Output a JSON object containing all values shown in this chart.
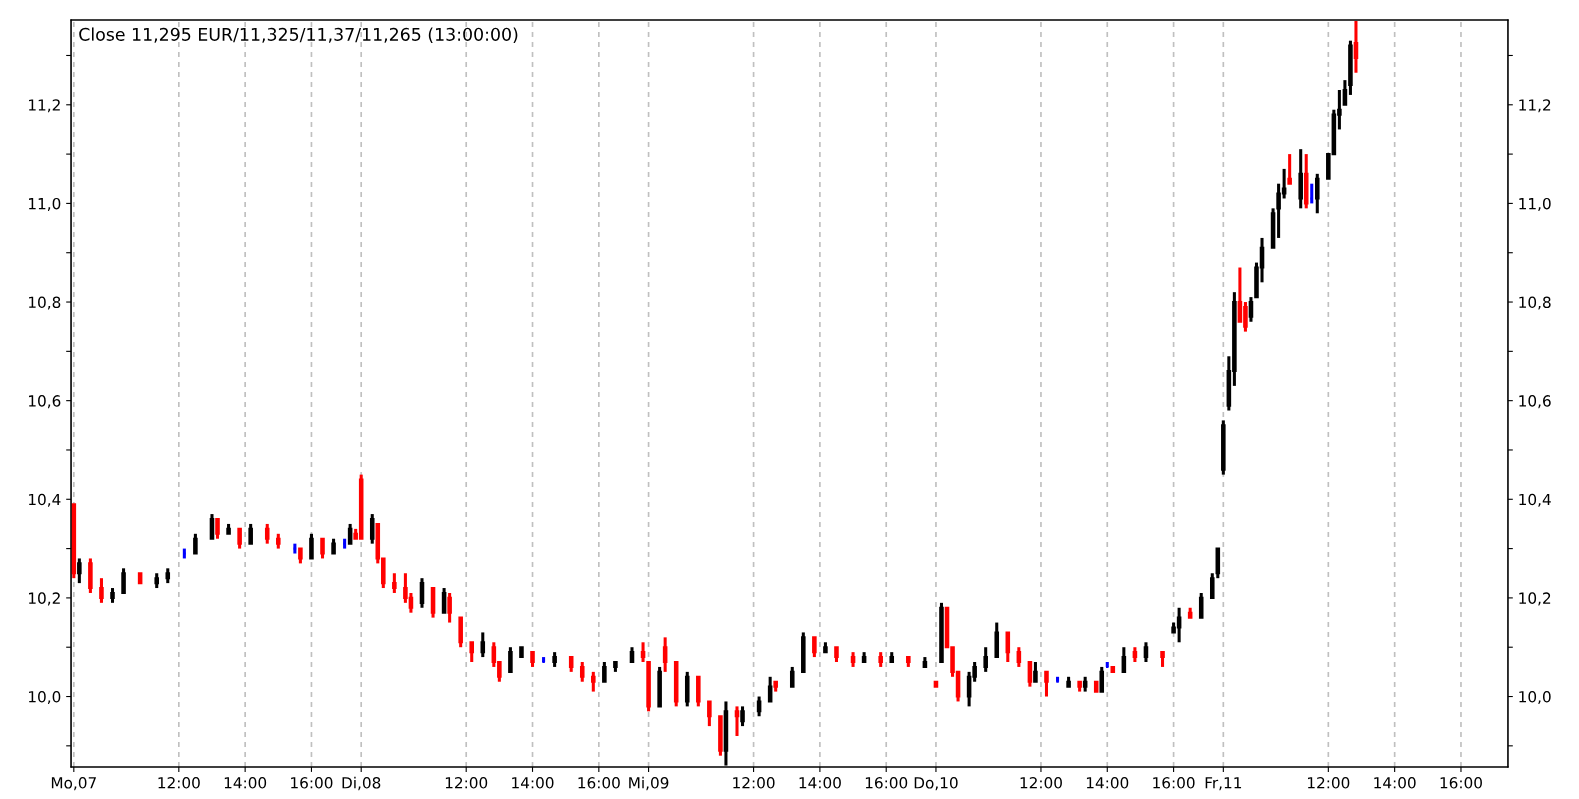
{
  "chart_data": {
    "type": "candlestick",
    "annotations": [
      "Close 11,295 EUR/11,325/11,37/11,265 (13:00:00)"
    ],
    "categories": [
      "Mo,07",
      null,
      null,
      null,
      null,
      null,
      null,
      null,
      null,
      null,
      null,
      null,
      null,
      null,
      null,
      null,
      null,
      null,
      null,
      "12:00",
      null,
      null,
      null,
      null,
      null,
      null,
      null,
      null,
      null,
      null,
      null,
      "14:00",
      null,
      null,
      null,
      null,
      null,
      null,
      null,
      null,
      null,
      null,
      null,
      "16:00",
      null,
      null,
      null,
      null,
      null,
      null,
      null,
      null,
      "Di,08",
      null,
      null,
      null,
      null,
      null,
      null,
      null,
      null,
      null,
      null,
      null,
      null,
      null,
      null,
      null,
      null,
      null,
      null,
      "12:00",
      null,
      null,
      null,
      null,
      null,
      null,
      null,
      null,
      null,
      null,
      null,
      "14:00",
      null,
      null,
      null,
      null,
      null,
      null,
      null,
      null,
      null,
      null,
      null,
      "16:00",
      null,
      null,
      null,
      null,
      null,
      null,
      null,
      null,
      "Mi,09",
      null,
      null,
      null,
      null,
      null,
      null,
      null,
      null,
      null,
      null,
      null,
      null,
      null,
      null,
      null,
      null,
      null,
      null,
      "12:00",
      null,
      null,
      null,
      null,
      null,
      null,
      null,
      null,
      null,
      null,
      null,
      "14:00",
      null,
      null,
      null,
      null,
      null,
      null,
      null,
      null,
      null,
      null,
      null,
      "16:00",
      null,
      null,
      null,
      null,
      null,
      null,
      null,
      null,
      "Do,10",
      null,
      null,
      null,
      null,
      null,
      null,
      null,
      null,
      null,
      null,
      null,
      null,
      null,
      null,
      null,
      null,
      null,
      null,
      "12:00",
      null,
      null,
      null,
      null,
      null,
      null,
      null,
      null,
      null,
      null,
      null,
      "14:00",
      null,
      null,
      null,
      null,
      null,
      null,
      null,
      null,
      null,
      null,
      null,
      "16:00",
      null,
      null,
      null,
      null,
      null,
      null,
      null,
      null,
      "Fr,11",
      null,
      null,
      null,
      null,
      null,
      null,
      null,
      null,
      null,
      null,
      null,
      null,
      null,
      null,
      null,
      null,
      null,
      null,
      "12:00",
      null,
      null,
      null,
      null,
      null,
      null,
      null,
      null,
      null,
      null,
      null,
      "14:00",
      null,
      null,
      null,
      null,
      null,
      null,
      null,
      null,
      null,
      null,
      null,
      "16:00",
      null,
      null,
      null,
      null,
      null,
      null,
      null,
      null
    ],
    "ohlc": [
      [
        10.39,
        10.39,
        10.24,
        10.25
      ],
      [
        10.25,
        10.28,
        10.23,
        10.27
      ],
      null,
      [
        10.27,
        10.28,
        10.21,
        10.22
      ],
      null,
      [
        10.22,
        10.24,
        10.19,
        10.2
      ],
      null,
      [
        10.2,
        10.22,
        10.19,
        10.21
      ],
      null,
      [
        10.21,
        10.26,
        10.21,
        10.25
      ],
      null,
      null,
      [
        10.25,
        10.25,
        10.23,
        10.23
      ],
      null,
      null,
      [
        10.23,
        10.25,
        10.22,
        10.24
      ],
      null,
      [
        10.24,
        10.26,
        10.23,
        10.25
      ],
      null,
      null,
      [
        10.29,
        10.3,
        10.28,
        10.29
      ],
      null,
      [
        10.29,
        10.33,
        10.29,
        10.32
      ],
      null,
      null,
      [
        10.32,
        10.37,
        10.32,
        10.36
      ],
      [
        10.36,
        10.36,
        10.32,
        10.33
      ],
      null,
      [
        10.33,
        10.35,
        10.33,
        10.34
      ],
      null,
      [
        10.34,
        10.34,
        10.3,
        10.31
      ],
      null,
      [
        10.31,
        10.35,
        10.31,
        10.34
      ],
      null,
      null,
      [
        10.34,
        10.35,
        10.31,
        10.32
      ],
      null,
      [
        10.32,
        10.33,
        10.3,
        10.31
      ],
      null,
      null,
      [
        10.3,
        10.31,
        10.29,
        10.3
      ],
      [
        10.3,
        10.3,
        10.27,
        10.28
      ],
      null,
      [
        10.28,
        10.33,
        10.28,
        10.32
      ],
      null,
      [
        10.32,
        10.32,
        10.28,
        10.29
      ],
      null,
      [
        10.29,
        10.32,
        10.29,
        10.31
      ],
      null,
      [
        10.31,
        10.32,
        10.3,
        10.31
      ],
      [
        10.31,
        10.35,
        10.31,
        10.34
      ],
      [
        10.33,
        10.34,
        10.32,
        10.32
      ],
      [
        10.44,
        10.45,
        10.32,
        10.32
      ],
      null,
      [
        10.32,
        10.37,
        10.31,
        10.36
      ],
      [
        10.35,
        10.35,
        10.27,
        10.28
      ],
      [
        10.28,
        10.28,
        10.22,
        10.23
      ],
      null,
      [
        10.23,
        10.25,
        10.21,
        10.22
      ],
      null,
      [
        10.22,
        10.25,
        10.19,
        10.2
      ],
      [
        10.2,
        10.21,
        10.17,
        10.18
      ],
      null,
      [
        10.19,
        10.24,
        10.18,
        10.23
      ],
      null,
      [
        10.22,
        10.22,
        10.16,
        10.17
      ],
      null,
      [
        10.17,
        10.22,
        10.17,
        10.21
      ],
      [
        10.2,
        10.21,
        10.15,
        10.17
      ],
      null,
      [
        10.16,
        10.16,
        10.1,
        10.11
      ],
      null,
      [
        10.11,
        10.11,
        10.07,
        10.09
      ],
      null,
      [
        10.09,
        10.13,
        10.08,
        10.11
      ],
      null,
      [
        10.1,
        10.11,
        10.06,
        10.07
      ],
      [
        10.07,
        10.07,
        10.03,
        10.04
      ],
      null,
      [
        10.05,
        10.1,
        10.05,
        10.09
      ],
      null,
      [
        10.08,
        10.1,
        10.08,
        10.1
      ],
      null,
      [
        10.09,
        10.09,
        10.06,
        10.07
      ],
      null,
      [
        10.07,
        10.08,
        10.07,
        10.07
      ],
      null,
      [
        10.07,
        10.09,
        10.06,
        10.08
      ],
      null,
      null,
      [
        10.08,
        10.08,
        10.05,
        10.06
      ],
      null,
      [
        10.06,
        10.07,
        10.03,
        10.04
      ],
      null,
      [
        10.04,
        10.05,
        10.01,
        10.03
      ],
      null,
      [
        10.03,
        10.07,
        10.03,
        10.06
      ],
      null,
      [
        10.06,
        10.07,
        10.05,
        10.07
      ],
      null,
      null,
      [
        10.07,
        10.1,
        10.07,
        10.09
      ],
      null,
      [
        10.09,
        10.11,
        10.07,
        10.08
      ],
      [
        10.07,
        10.07,
        9.97,
        9.98
      ],
      null,
      [
        9.98,
        10.06,
        9.98,
        10.05
      ],
      [
        10.1,
        10.12,
        10.05,
        10.07
      ],
      null,
      [
        10.07,
        10.07,
        9.98,
        9.99
      ],
      null,
      [
        9.99,
        10.05,
        9.98,
        10.04
      ],
      null,
      [
        10.04,
        10.04,
        9.98,
        9.99
      ],
      null,
      [
        9.99,
        9.99,
        9.94,
        9.96
      ],
      null,
      [
        9.96,
        9.96,
        9.88,
        9.89
      ],
      [
        9.89,
        9.99,
        9.86,
        9.97
      ],
      null,
      [
        9.97,
        9.98,
        9.92,
        9.96
      ],
      [
        9.95,
        9.98,
        9.94,
        9.97
      ],
      null,
      null,
      [
        9.97,
        10.0,
        9.96,
        9.99
      ],
      null,
      [
        9.99,
        10.04,
        9.99,
        10.02
      ],
      [
        10.03,
        10.03,
        10.01,
        10.02
      ],
      null,
      null,
      [
        10.02,
        10.06,
        10.02,
        10.05
      ],
      null,
      [
        10.05,
        10.13,
        10.05,
        10.12
      ],
      null,
      [
        10.12,
        10.12,
        10.08,
        10.09
      ],
      null,
      [
        10.09,
        10.11,
        10.09,
        10.1
      ],
      null,
      [
        10.1,
        10.1,
        10.07,
        10.08
      ],
      null,
      null,
      [
        10.08,
        10.09,
        10.06,
        10.07
      ],
      null,
      [
        10.07,
        10.09,
        10.07,
        10.08
      ],
      null,
      null,
      [
        10.08,
        10.09,
        10.06,
        10.07
      ],
      null,
      [
        10.07,
        10.09,
        10.07,
        10.08
      ],
      null,
      null,
      [
        10.08,
        10.08,
        10.06,
        10.07
      ],
      null,
      null,
      [
        10.06,
        10.08,
        10.06,
        10.07
      ],
      null,
      [
        10.03,
        10.03,
        10.02,
        10.02
      ],
      [
        10.07,
        10.19,
        10.07,
        10.18
      ],
      [
        10.18,
        10.18,
        10.1,
        10.1
      ],
      [
        10.1,
        10.1,
        10.04,
        10.05
      ],
      [
        10.05,
        10.05,
        9.99,
        10.0
      ],
      null,
      [
        10.0,
        10.05,
        9.98,
        10.04
      ],
      [
        10.04,
        10.07,
        10.03,
        10.06
      ],
      null,
      [
        10.06,
        10.1,
        10.05,
        10.08
      ],
      null,
      [
        10.08,
        10.15,
        10.08,
        10.13
      ],
      null,
      [
        10.13,
        10.13,
        10.07,
        10.09
      ],
      null,
      [
        10.09,
        10.1,
        10.06,
        10.07
      ],
      null,
      [
        10.07,
        10.07,
        10.02,
        10.03
      ],
      [
        10.03,
        10.07,
        10.03,
        10.05
      ],
      null,
      [
        10.05,
        10.05,
        10.0,
        10.03
      ],
      null,
      [
        10.03,
        10.04,
        10.03,
        10.03
      ],
      null,
      [
        10.02,
        10.04,
        10.02,
        10.03
      ],
      null,
      [
        10.03,
        10.03,
        10.01,
        10.02
      ],
      [
        10.02,
        10.04,
        10.01,
        10.03
      ],
      null,
      [
        10.03,
        10.03,
        10.01,
        10.01
      ],
      [
        10.01,
        10.06,
        10.01,
        10.05
      ],
      [
        10.06,
        10.07,
        10.06,
        10.06
      ],
      [
        10.06,
        10.06,
        10.05,
        10.05
      ],
      null,
      [
        10.05,
        10.1,
        10.05,
        10.08
      ],
      null,
      [
        10.09,
        10.1,
        10.07,
        10.08
      ],
      null,
      [
        10.08,
        10.11,
        10.07,
        10.1
      ],
      null,
      null,
      [
        10.09,
        10.09,
        10.06,
        10.08
      ],
      null,
      [
        10.13,
        10.15,
        10.13,
        10.14
      ],
      [
        10.14,
        10.18,
        10.11,
        10.16
      ],
      null,
      [
        10.17,
        10.18,
        10.16,
        10.16
      ],
      null,
      [
        10.16,
        10.21,
        10.16,
        10.2
      ],
      null,
      [
        10.2,
        10.25,
        10.2,
        10.24
      ],
      [
        10.25,
        10.3,
        10.24,
        10.3
      ],
      [
        10.46,
        10.56,
        10.45,
        10.55
      ],
      [
        10.59,
        10.69,
        10.58,
        10.66
      ],
      [
        10.66,
        10.82,
        10.63,
        10.8
      ],
      [
        10.8,
        10.87,
        10.76,
        10.76
      ],
      [
        10.79,
        10.8,
        10.74,
        10.75
      ],
      [
        10.77,
        10.81,
        10.76,
        10.8
      ],
      [
        10.81,
        10.88,
        10.81,
        10.87
      ],
      [
        10.87,
        10.93,
        10.84,
        10.91
      ],
      null,
      [
        10.91,
        10.99,
        10.91,
        10.98
      ],
      [
        10.99,
        11.04,
        10.93,
        11.02
      ],
      [
        11.02,
        11.07,
        11.01,
        11.03
      ],
      [
        11.05,
        11.1,
        11.04,
        11.04
      ],
      null,
      [
        11.01,
        11.11,
        10.99,
        11.06
      ],
      [
        11.06,
        11.1,
        10.99,
        11.0
      ],
      [
        11.01,
        11.04,
        11.0,
        11.01
      ],
      [
        11.01,
        11.06,
        10.98,
        11.05
      ],
      null,
      [
        11.05,
        11.1,
        11.05,
        11.1
      ],
      [
        11.1,
        11.19,
        11.1,
        11.18
      ],
      [
        11.18,
        11.23,
        11.15,
        11.19
      ],
      [
        11.2,
        11.25,
        11.2,
        11.23
      ],
      [
        11.24,
        11.33,
        11.22,
        11.32
      ],
      [
        11.325,
        11.37,
        11.265,
        11.295
      ],
      null,
      null,
      null,
      null,
      null,
      null,
      null,
      null,
      null,
      null,
      null,
      null,
      null,
      null,
      null,
      null,
      null,
      null,
      null,
      null,
      null,
      null,
      null,
      null,
      null,
      null,
      null
    ],
    "colors": [
      "#ff0000",
      "#000000",
      null,
      "#ff0000",
      null,
      "#ff0000",
      null,
      "#000000",
      null,
      "#000000",
      null,
      null,
      "#ff0000",
      null,
      null,
      "#000000",
      null,
      "#000000",
      null,
      null,
      "#0000ff",
      null,
      "#000000",
      null,
      null,
      "#000000",
      "#ff0000",
      null,
      "#000000",
      null,
      "#ff0000",
      null,
      "#000000",
      null,
      null,
      "#ff0000",
      null,
      "#ff0000",
      null,
      null,
      "#0000ff",
      "#ff0000",
      null,
      "#000000",
      null,
      "#ff0000",
      null,
      "#000000",
      null,
      "#0000ff",
      "#000000",
      "#ff0000",
      "#ff0000",
      null,
      "#000000",
      "#ff0000",
      "#ff0000",
      null,
      "#ff0000",
      null,
      "#ff0000",
      "#ff0000",
      null,
      "#000000",
      null,
      "#ff0000",
      null,
      "#000000",
      "#ff0000",
      null,
      "#ff0000",
      null,
      "#ff0000",
      null,
      "#000000",
      null,
      "#ff0000",
      "#ff0000",
      null,
      "#000000",
      null,
      "#000000",
      null,
      "#ff0000",
      null,
      "#0000ff",
      null,
      "#000000",
      null,
      null,
      "#ff0000",
      null,
      "#ff0000",
      null,
      "#ff0000",
      null,
      "#000000",
      null,
      "#000000",
      null,
      null,
      "#000000",
      null,
      "#ff0000",
      "#ff0000",
      null,
      "#000000",
      "#ff0000",
      null,
      "#ff0000",
      null,
      "#000000",
      null,
      "#ff0000",
      null,
      "#ff0000",
      null,
      "#ff0000",
      "#000000",
      null,
      "#ff0000",
      "#000000",
      null,
      null,
      "#000000",
      null,
      "#000000",
      "#ff0000",
      null,
      null,
      "#000000",
      null,
      "#000000",
      null,
      "#ff0000",
      null,
      "#000000",
      null,
      "#ff0000",
      null,
      null,
      "#ff0000",
      null,
      "#000000",
      null,
      null,
      "#ff0000",
      null,
      "#000000",
      null,
      null,
      "#ff0000",
      null,
      null,
      "#000000",
      null,
      "#ff0000",
      "#000000",
      "#ff0000",
      "#ff0000",
      "#ff0000",
      null,
      "#000000",
      "#000000",
      null,
      "#000000",
      null,
      "#000000",
      null,
      "#ff0000",
      null,
      "#ff0000",
      null,
      "#ff0000",
      "#000000",
      null,
      "#ff0000",
      null,
      "#0000ff",
      null,
      "#000000",
      null,
      "#ff0000",
      "#000000",
      null,
      "#ff0000",
      "#000000",
      "#0000ff",
      "#ff0000",
      null,
      "#000000",
      null,
      "#ff0000",
      null,
      "#000000",
      null,
      null,
      "#ff0000",
      null,
      "#000000",
      "#000000",
      null,
      "#ff0000",
      null,
      "#000000",
      null,
      "#000000",
      "#000000",
      "#000000",
      "#000000",
      "#000000",
      "#ff0000",
      "#ff0000",
      "#000000",
      "#000000",
      "#000000",
      null,
      "#000000",
      "#000000",
      "#000000",
      "#ff0000",
      null,
      "#000000",
      "#ff0000",
      "#0000ff",
      "#000000",
      null,
      "#000000",
      "#000000",
      "#000000",
      "#000000",
      "#000000",
      "#ff0000",
      null,
      null,
      null,
      null,
      null,
      null,
      null,
      null,
      null,
      null,
      null,
      null,
      null,
      null,
      null,
      null,
      null,
      null,
      null,
      null,
      null,
      null,
      null,
      null,
      null,
      null,
      null
    ],
    "ylim": [
      9.857,
      11.372
    ],
    "yticks": [
      {
        "value": 9.9,
        "label": null
      },
      {
        "value": 10.0,
        "label": "10,0"
      },
      {
        "value": 10.1,
        "label": null
      },
      {
        "value": 10.2,
        "label": "10,2"
      },
      {
        "value": 10.3,
        "label": null
      },
      {
        "value": 10.4,
        "label": "10,4"
      },
      {
        "value": 10.5,
        "label": null
      },
      {
        "value": 10.6,
        "label": "10,6"
      },
      {
        "value": 10.7,
        "label": null
      },
      {
        "value": 10.8,
        "label": "10,8"
      },
      {
        "value": 10.9,
        "label": null
      },
      {
        "value": 11.0,
        "label": "11,0"
      },
      {
        "value": 11.1,
        "label": null
      },
      {
        "value": 11.2,
        "label": "11,2"
      },
      {
        "value": 11.3,
        "label": null
      }
    ],
    "y2lim": [
      9.857,
      11.372
    ],
    "y2ticks": [
      {
        "value": 9.9,
        "label": null
      },
      {
        "value": 10.0,
        "label": "10,0"
      },
      {
        "value": 10.1,
        "label": null
      },
      {
        "value": 10.2,
        "label": "10,2"
      },
      {
        "value": 10.3,
        "label": null
      },
      {
        "value": 10.4,
        "label": "10,4"
      },
      {
        "value": 10.5,
        "label": null
      },
      {
        "value": 10.6,
        "label": "10,6"
      },
      {
        "value": 10.7,
        "label": null
      },
      {
        "value": 10.8,
        "label": "10,8"
      },
      {
        "value": 10.9,
        "label": null
      },
      {
        "value": 11.0,
        "label": "11,0"
      },
      {
        "value": 11.1,
        "label": null
      },
      {
        "value": 11.2,
        "label": "11,2"
      },
      {
        "value": 11.3,
        "label": null
      }
    ],
    "grid": "x"
  }
}
